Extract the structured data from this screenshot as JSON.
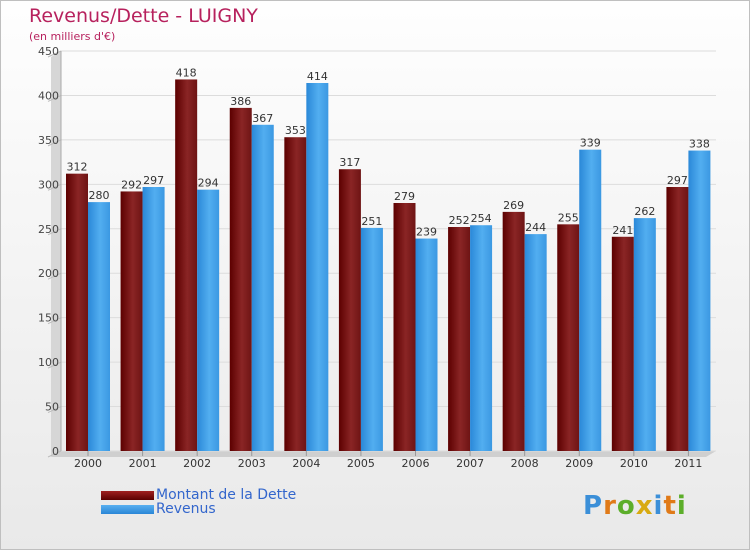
{
  "chart_data": {
    "type": "bar",
    "title": "Revenus/Dette - LUIGNY",
    "subtitle": "(en milliers d'€)",
    "categories": [
      "2000",
      "2001",
      "2002",
      "2003",
      "2004",
      "2005",
      "2006",
      "2007",
      "2008",
      "2009",
      "2010",
      "2011"
    ],
    "series": [
      {
        "name": "Montant de la Dette",
        "color": "#7a1212",
        "values": [
          312,
          292,
          418,
          386,
          353,
          317,
          279,
          252,
          269,
          255,
          241,
          297
        ]
      },
      {
        "name": "Revenus",
        "color": "#3d9be3",
        "values": [
          280,
          297,
          294,
          367,
          414,
          251,
          239,
          254,
          244,
          339,
          262,
          338
        ]
      }
    ],
    "ylim": [
      0,
      450
    ],
    "yticks": [
      0,
      50,
      100,
      150,
      200,
      250,
      300,
      350,
      400,
      450
    ],
    "grid": true,
    "legend_position": "bottom-left"
  },
  "logo": {
    "text": "Proxiti"
  }
}
